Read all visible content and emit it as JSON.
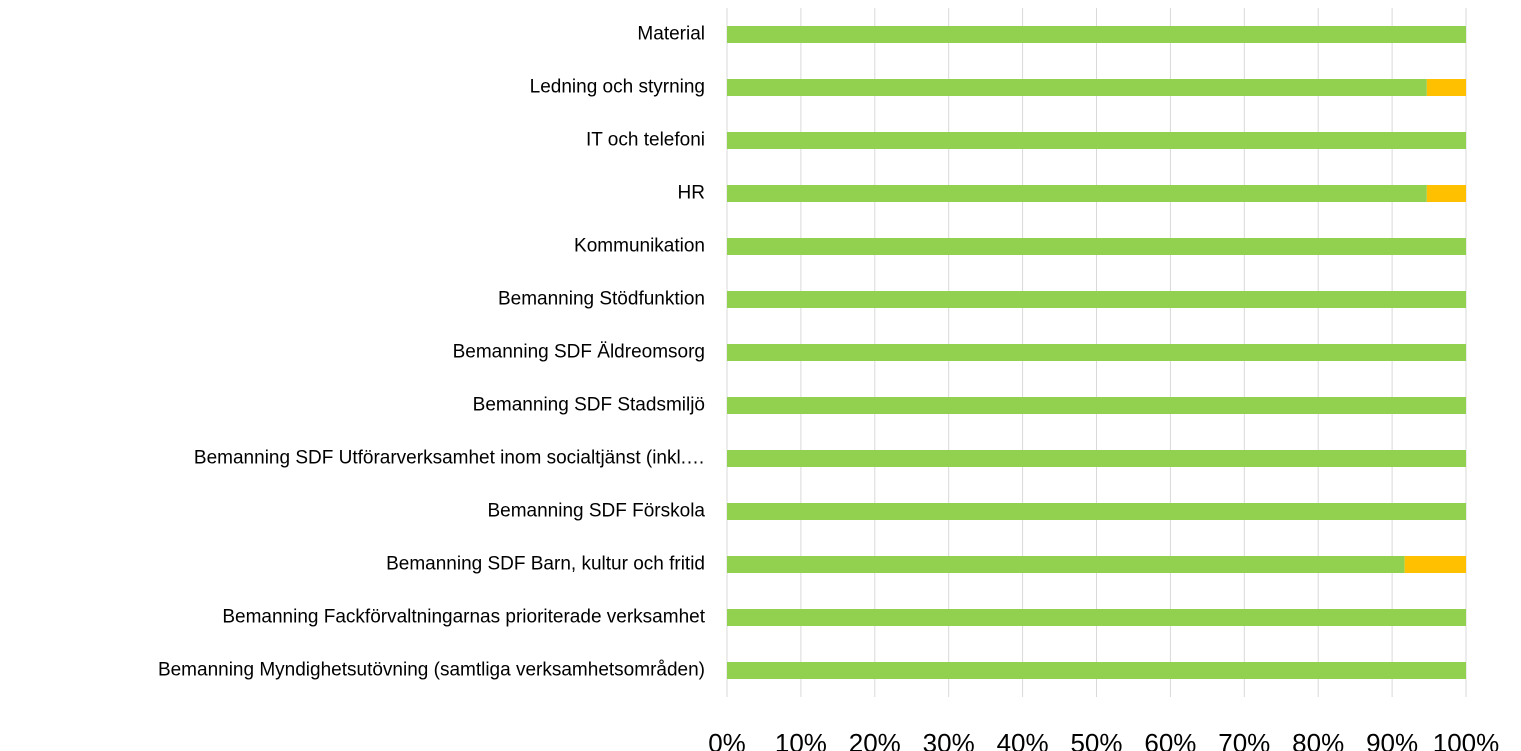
{
  "chart_data": {
    "type": "stacked_barh",
    "categories": [
      "Material",
      "Ledning och styrning",
      "IT och telefoni",
      "HR",
      "Kommunikation",
      "Bemanning Stödfunktion",
      "Bemanning SDF Äldreomsorg",
      "Bemanning SDF Stadsmiljö",
      "Bemanning SDF Utförarverksamhet inom socialtjänst (inkl.…",
      "Bemanning SDF Förskola",
      "Bemanning SDF Barn, kultur och fritid",
      "Bemanning Fackförvaltningarnas prioriterade verksamhet",
      "Bemanning Myndighetsutövning (samtliga verksamhetsområden)"
    ],
    "series": [
      {
        "color": "#92d050",
        "values": [
          100,
          94.7,
          100,
          94.7,
          100,
          100,
          100,
          100,
          100,
          100,
          91.7,
          100,
          100
        ]
      },
      {
        "color": "#ffc000",
        "values": [
          0,
          5.3,
          0,
          5.3,
          0,
          0,
          0,
          0,
          0,
          0,
          8.3,
          0,
          0
        ]
      }
    ],
    "xlim": [
      0,
      100
    ],
    "xticks": [
      {
        "value": 0,
        "label": "0%"
      },
      {
        "value": 10,
        "label": "10%"
      },
      {
        "value": 20,
        "label": "20%"
      },
      {
        "value": 30,
        "label": "30%"
      },
      {
        "value": 40,
        "label": "40%"
      },
      {
        "value": 50,
        "label": "50%"
      },
      {
        "value": 60,
        "label": "60%"
      },
      {
        "value": 70,
        "label": "70%"
      },
      {
        "value": 80,
        "label": "80%"
      },
      {
        "value": 90,
        "label": "90%"
      },
      {
        "value": 100,
        "label": "100%"
      }
    ],
    "grid": true
  }
}
